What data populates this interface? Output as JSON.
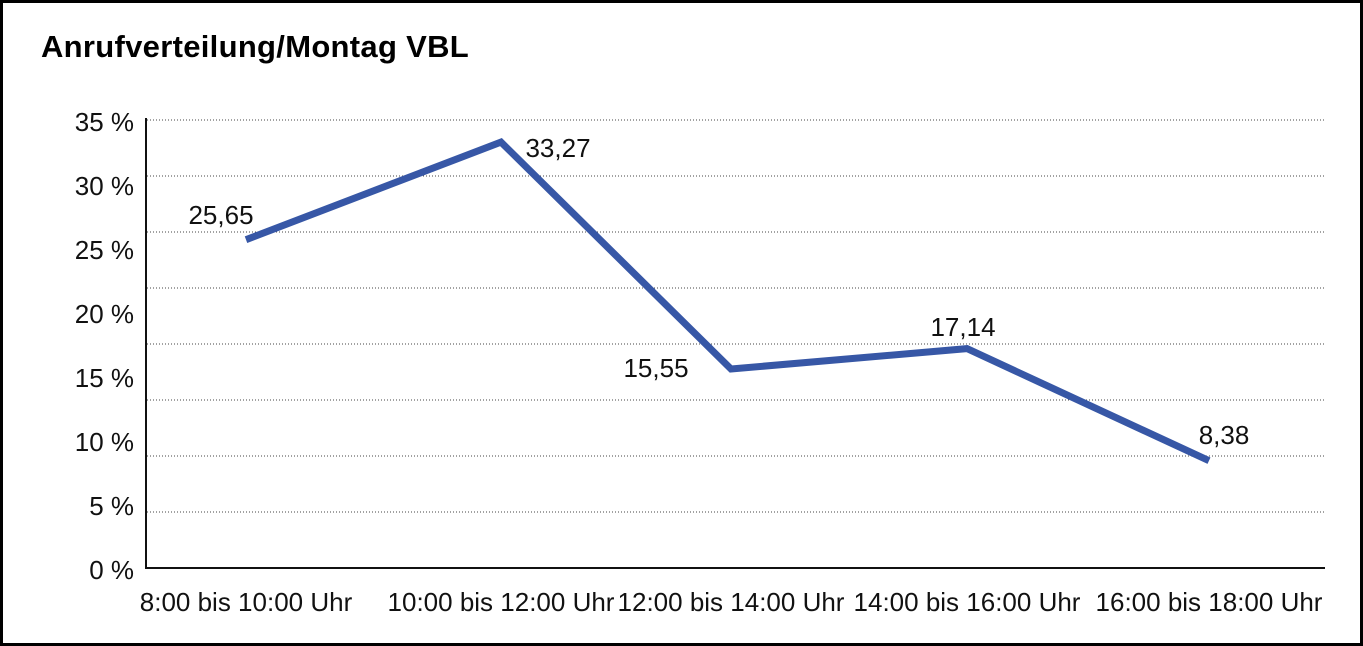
{
  "window": {
    "title": "Anrufverteilung/Montag VBL"
  },
  "chart_data": {
    "type": "line",
    "title": "Anrufverteilung/Montag VBL",
    "categories": [
      "8:00 bis 10:00 Uhr",
      "10:00 bis 12:00 Uhr",
      "12:00 bis 14:00 Uhr",
      "14:00 bis 16:00 Uhr",
      "16:00 bis 18:00 Uhr"
    ],
    "values": [
      25.65,
      33.27,
      15.55,
      17.14,
      8.38
    ],
    "value_labels": [
      "25,65",
      "33,27",
      "15,55",
      "17,14",
      "8,38"
    ],
    "y_tick_values": [
      0,
      5,
      10,
      15,
      20,
      25,
      30,
      35
    ],
    "y_tick_labels": [
      "0 %",
      "5 %",
      "10 %",
      "15 %",
      "20 %",
      "25 %",
      "30 %",
      "35 %"
    ],
    "xlabel": "",
    "ylabel": "",
    "ylim": [
      0,
      35
    ],
    "legend": "none",
    "grid": "horizontal-dotted",
    "colors": {
      "series_line": "#3757a6",
      "axis": "#111111",
      "gridline": "#444444",
      "text": "#111111",
      "background": "#ffffff"
    }
  }
}
